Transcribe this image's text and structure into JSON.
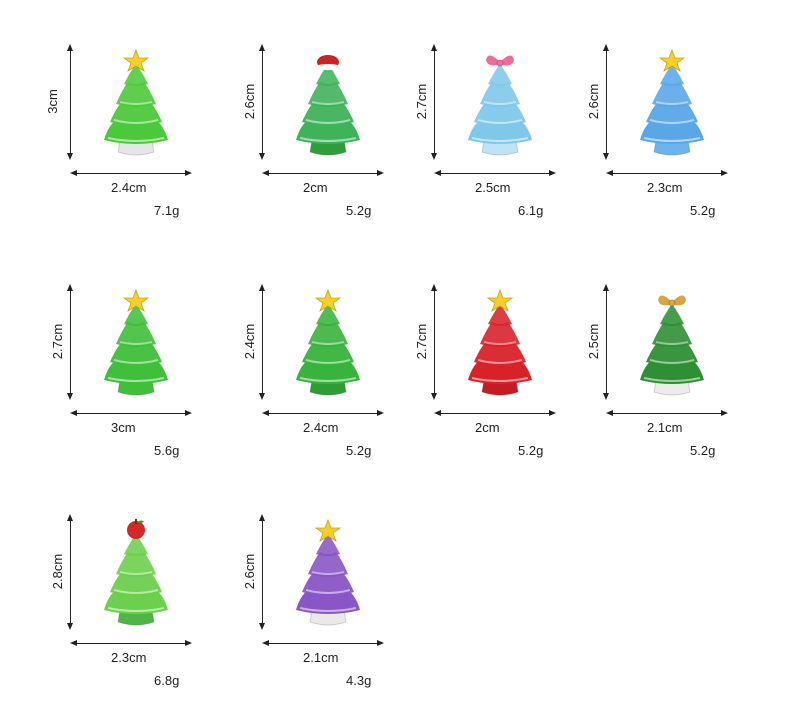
{
  "products": [
    {
      "height": "3cm",
      "width": "2.4cm",
      "weight": "7.1g",
      "color": "#4cc93a",
      "base": "#e6e6e6",
      "topper": "star",
      "topperColor": "#f4cf2a"
    },
    {
      "height": "2.6cm",
      "width": "2cm",
      "weight": "5.2g",
      "color": "#3fb35a",
      "base": "#2f9e3a",
      "topper": "hat",
      "topperColor": "#cc2222"
    },
    {
      "height": "2.7cm",
      "width": "2.5cm",
      "weight": "6.1g",
      "color": "#7fc8ea",
      "base": "#bde3f5",
      "topper": "bow",
      "topperColor": "#ef6b9c"
    },
    {
      "height": "2.6cm",
      "width": "2.3cm",
      "weight": "5.2g",
      "color": "#5aa7e8",
      "base": "#6db3ee",
      "topper": "star",
      "topperColor": "#f4cf2a"
    },
    {
      "height": "2.7cm",
      "width": "3cm",
      "weight": "5.6g",
      "color": "#3fbf3a",
      "base": "#3fbf3a",
      "topper": "star",
      "topperColor": "#f4cf2a"
    },
    {
      "height": "2.4cm",
      "width": "2.4cm",
      "weight": "5.2g",
      "color": "#38b33c",
      "base": "#2e9e33",
      "topper": "star",
      "topperColor": "#f4cf2a"
    },
    {
      "height": "2.7cm",
      "width": "2cm",
      "weight": "5.2g",
      "color": "#d8222a",
      "base": "#c41c22",
      "topper": "star",
      "topperColor": "#f4cf2a"
    },
    {
      "height": "2.5cm",
      "width": "2.1cm",
      "weight": "5.2g",
      "color": "#2f8f34",
      "base": "#ececec",
      "topper": "bow",
      "topperColor": "#d9a441"
    },
    {
      "height": "2.8cm",
      "width": "2.3cm",
      "weight": "6.8g",
      "color": "#6ccf4d",
      "base": "#4fb545",
      "topper": "apple",
      "topperColor": "#d62626"
    },
    {
      "height": "2.6cm",
      "width": "2.1cm",
      "weight": "4.3g",
      "color": "#8a55c6",
      "base": "#ece8e8",
      "topper": "star",
      "topperColor": "#f4cf2a"
    }
  ]
}
